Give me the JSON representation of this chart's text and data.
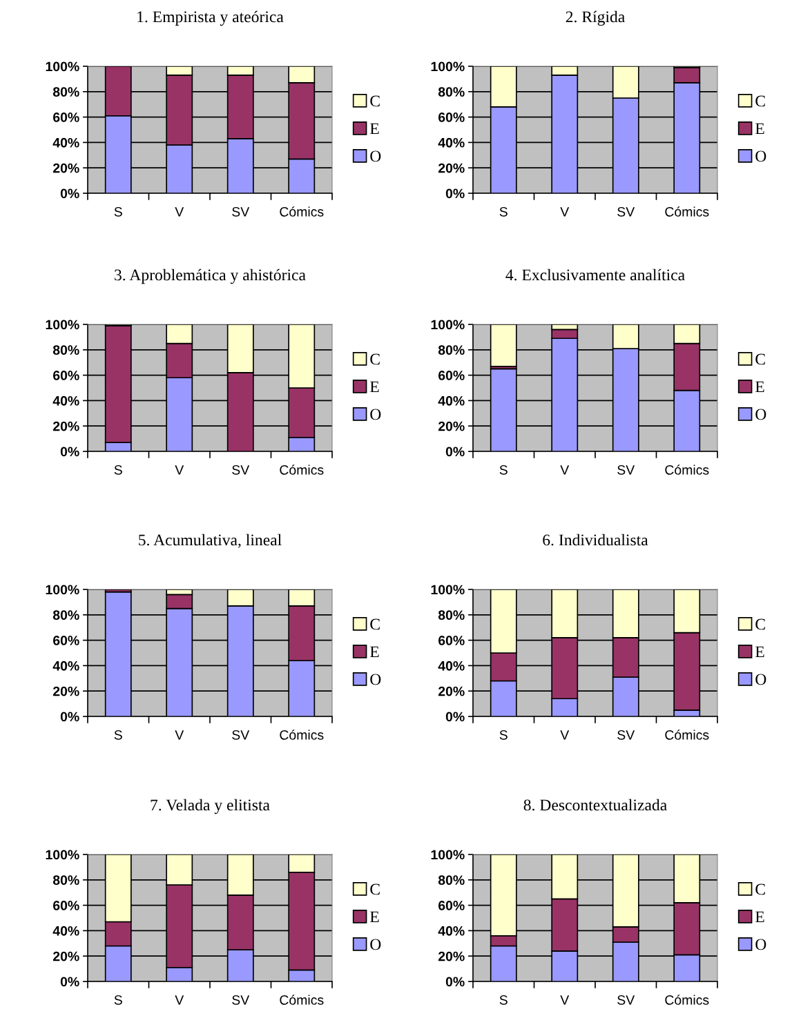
{
  "chart_data": [
    {
      "type": "bar",
      "stacked": true,
      "title": "1. Empirista y ateórica",
      "categories": [
        "S",
        "V",
        "SV",
        "Cómics"
      ],
      "ylim": [
        0,
        100
      ],
      "yticks": [
        {
          "value": 0,
          "label": "0%"
        },
        {
          "value": 20,
          "label": "20%"
        },
        {
          "value": 40,
          "label": "40%"
        },
        {
          "value": 60,
          "label": "60%"
        },
        {
          "value": 80,
          "label": "80%"
        },
        {
          "value": 100,
          "label": "100%"
        }
      ],
      "grid": "y",
      "legend": "right",
      "series": [
        {
          "name": "O",
          "color": "#9999ff",
          "values": [
            61,
            38,
            43,
            27
          ]
        },
        {
          "name": "E",
          "color": "#993366",
          "values": [
            39,
            55,
            50,
            60
          ]
        },
        {
          "name": "C",
          "color": "#ffffcc",
          "values": [
            0,
            7,
            7,
            13
          ]
        }
      ]
    },
    {
      "type": "bar",
      "stacked": true,
      "title": "2. Rígida",
      "categories": [
        "S",
        "V",
        "SV",
        "Cómics"
      ],
      "ylim": [
        0,
        100
      ],
      "yticks": [
        {
          "value": 0,
          "label": "0%"
        },
        {
          "value": 20,
          "label": "20%"
        },
        {
          "value": 40,
          "label": "40%"
        },
        {
          "value": 60,
          "label": "60%"
        },
        {
          "value": 80,
          "label": "80%"
        },
        {
          "value": 100,
          "label": "100%"
        }
      ],
      "grid": "y",
      "legend": "right",
      "series": [
        {
          "name": "O",
          "color": "#9999ff",
          "values": [
            68,
            93,
            75,
            87
          ]
        },
        {
          "name": "E",
          "color": "#993366",
          "values": [
            0,
            0,
            0,
            12
          ]
        },
        {
          "name": "C",
          "color": "#ffffcc",
          "values": [
            32,
            7,
            25,
            1
          ]
        }
      ]
    },
    {
      "type": "bar",
      "stacked": true,
      "title": "3. Aproblemática y ahistórica",
      "categories": [
        "S",
        "V",
        "SV",
        "Cómics"
      ],
      "ylim": [
        0,
        100
      ],
      "yticks": [
        {
          "value": 0,
          "label": "0%"
        },
        {
          "value": 20,
          "label": "20%"
        },
        {
          "value": 40,
          "label": "40%"
        },
        {
          "value": 60,
          "label": "60%"
        },
        {
          "value": 80,
          "label": "80%"
        },
        {
          "value": 100,
          "label": "100%"
        }
      ],
      "grid": "y",
      "legend": "right",
      "series": [
        {
          "name": "O",
          "color": "#9999ff",
          "values": [
            7,
            58,
            0,
            11
          ]
        },
        {
          "name": "E",
          "color": "#993366",
          "values": [
            92,
            27,
            62,
            39
          ]
        },
        {
          "name": "C",
          "color": "#ffffcc",
          "values": [
            1,
            15,
            38,
            50
          ]
        }
      ]
    },
    {
      "type": "bar",
      "stacked": true,
      "title": "4. Exclusivamente analítica",
      "categories": [
        "S",
        "V",
        "SV",
        "Cómics"
      ],
      "ylim": [
        0,
        100
      ],
      "yticks": [
        {
          "value": 0,
          "label": "0%"
        },
        {
          "value": 20,
          "label": "20%"
        },
        {
          "value": 40,
          "label": "40%"
        },
        {
          "value": 60,
          "label": "60%"
        },
        {
          "value": 80,
          "label": "80%"
        },
        {
          "value": 100,
          "label": "100%"
        }
      ],
      "grid": "y",
      "legend": "right",
      "series": [
        {
          "name": "O",
          "color": "#9999ff",
          "values": [
            65,
            89,
            81,
            48
          ]
        },
        {
          "name": "E",
          "color": "#993366",
          "values": [
            2,
            7,
            0,
            37
          ]
        },
        {
          "name": "C",
          "color": "#ffffcc",
          "values": [
            33,
            4,
            19,
            15
          ]
        }
      ]
    },
    {
      "type": "bar",
      "stacked": true,
      "title": "5. Acumulativa, lineal",
      "categories": [
        "S",
        "V",
        "SV",
        "Cómics"
      ],
      "ylim": [
        0,
        100
      ],
      "yticks": [
        {
          "value": 0,
          "label": "0%"
        },
        {
          "value": 20,
          "label": "20%"
        },
        {
          "value": 40,
          "label": "40%"
        },
        {
          "value": 60,
          "label": "60%"
        },
        {
          "value": 80,
          "label": "80%"
        },
        {
          "value": 100,
          "label": "100%"
        }
      ],
      "grid": "y",
      "legend": "right",
      "series": [
        {
          "name": "O",
          "color": "#9999ff",
          "values": [
            98,
            85,
            87,
            44
          ]
        },
        {
          "name": "E",
          "color": "#993366",
          "values": [
            2,
            11,
            0,
            43
          ]
        },
        {
          "name": "C",
          "color": "#ffffcc",
          "values": [
            0,
            4,
            13,
            13
          ]
        }
      ]
    },
    {
      "type": "bar",
      "stacked": true,
      "title": "6. Individualista",
      "categories": [
        "S",
        "V",
        "SV",
        "Cómics"
      ],
      "ylim": [
        0,
        100
      ],
      "yticks": [
        {
          "value": 0,
          "label": "0%"
        },
        {
          "value": 20,
          "label": "20%"
        },
        {
          "value": 40,
          "label": "40%"
        },
        {
          "value": 60,
          "label": "60%"
        },
        {
          "value": 80,
          "label": "80%"
        },
        {
          "value": 100,
          "label": "100%"
        }
      ],
      "grid": "y",
      "legend": "right",
      "series": [
        {
          "name": "O",
          "color": "#9999ff",
          "values": [
            28,
            14,
            31,
            5
          ]
        },
        {
          "name": "E",
          "color": "#993366",
          "values": [
            22,
            48,
            31,
            61
          ]
        },
        {
          "name": "C",
          "color": "#ffffcc",
          "values": [
            50,
            38,
            38,
            34
          ]
        }
      ]
    },
    {
      "type": "bar",
      "stacked": true,
      "title": "7. Velada y elitista",
      "categories": [
        "S",
        "V",
        "SV",
        "Cómics"
      ],
      "ylim": [
        0,
        100
      ],
      "yticks": [
        {
          "value": 0,
          "label": "0%"
        },
        {
          "value": 20,
          "label": "20%"
        },
        {
          "value": 40,
          "label": "40%"
        },
        {
          "value": 60,
          "label": "60%"
        },
        {
          "value": 80,
          "label": "80%"
        },
        {
          "value": 100,
          "label": "100%"
        }
      ],
      "grid": "y",
      "legend": "right",
      "series": [
        {
          "name": "O",
          "color": "#9999ff",
          "values": [
            28,
            11,
            25,
            9
          ]
        },
        {
          "name": "E",
          "color": "#993366",
          "values": [
            19,
            65,
            43,
            77
          ]
        },
        {
          "name": "C",
          "color": "#ffffcc",
          "values": [
            53,
            24,
            32,
            14
          ]
        }
      ]
    },
    {
      "type": "bar",
      "stacked": true,
      "title": "8. Descontextualizada",
      "categories": [
        "S",
        "V",
        "SV",
        "Cómics"
      ],
      "ylim": [
        0,
        100
      ],
      "yticks": [
        {
          "value": 0,
          "label": "0%"
        },
        {
          "value": 20,
          "label": "20%"
        },
        {
          "value": 40,
          "label": "40%"
        },
        {
          "value": 60,
          "label": "60%"
        },
        {
          "value": 80,
          "label": "80%"
        },
        {
          "value": 100,
          "label": "100%"
        }
      ],
      "grid": "y",
      "legend": "right",
      "series": [
        {
          "name": "O",
          "color": "#9999ff",
          "values": [
            28,
            24,
            31,
            21
          ]
        },
        {
          "name": "E",
          "color": "#993366",
          "values": [
            8,
            41,
            12,
            41
          ]
        },
        {
          "name": "C",
          "color": "#ffffcc",
          "values": [
            64,
            35,
            57,
            38
          ]
        }
      ]
    }
  ]
}
